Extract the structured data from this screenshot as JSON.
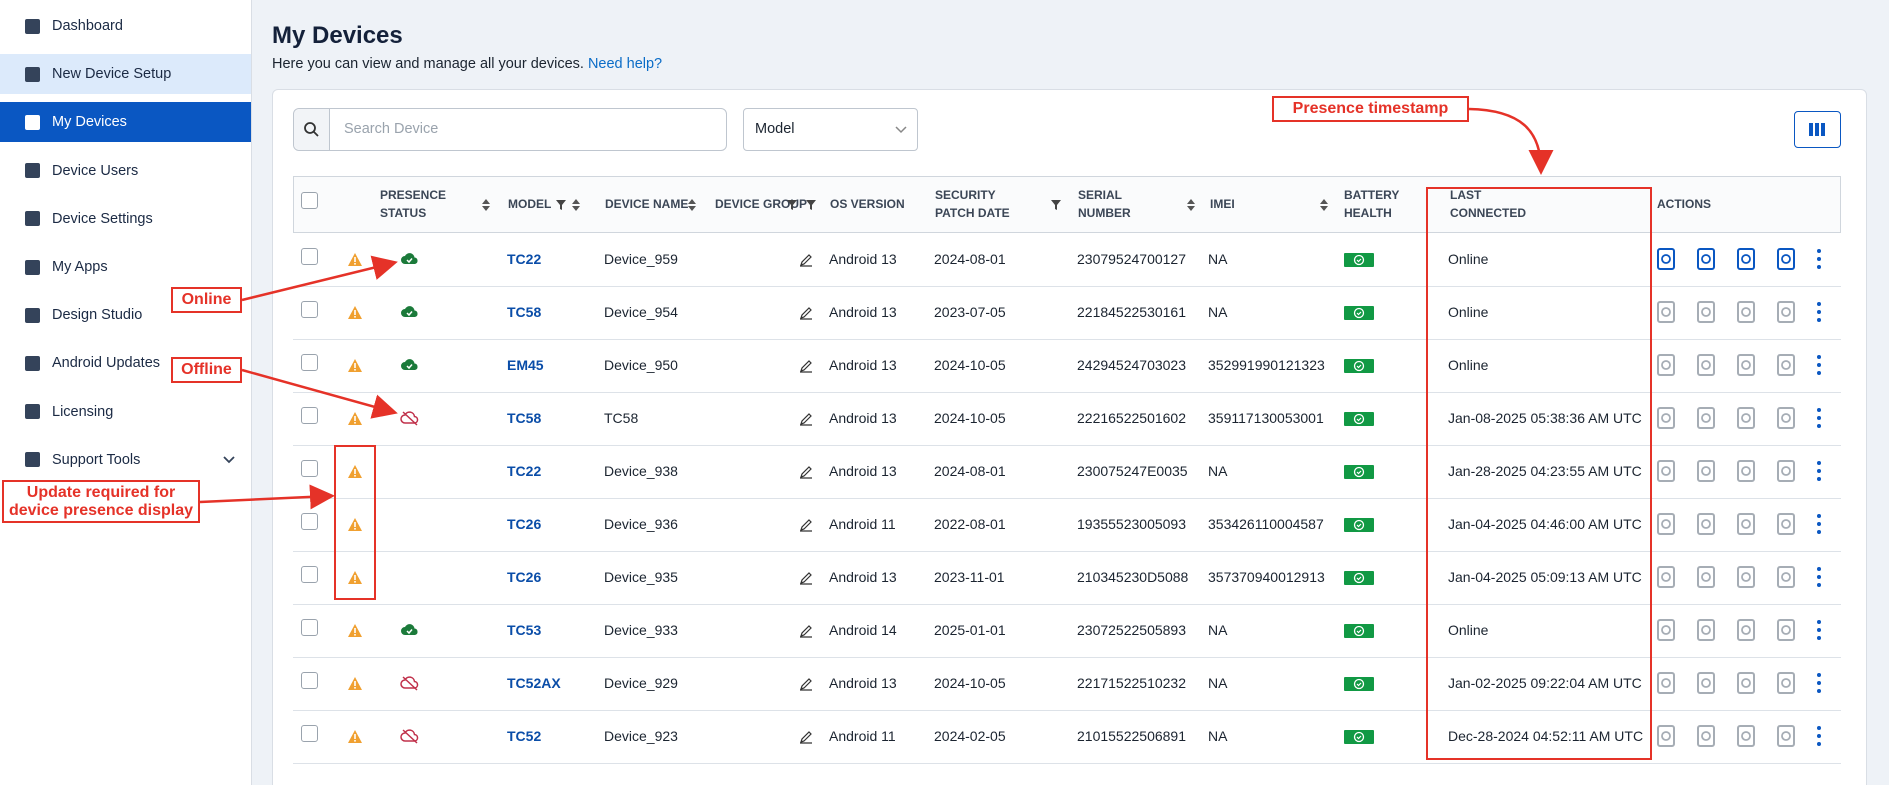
{
  "sidebar": {
    "items": [
      "Dashboard",
      "New Device Setup",
      "My Devices",
      "Device Users",
      "Device Settings",
      "My Apps",
      "Design Studio",
      "Android Updates",
      "Licensing",
      "Support Tools"
    ],
    "active": 2,
    "highlighted": 1
  },
  "header": {
    "title": "My Devices",
    "subtitle": "Here you can view and manage all your devices.",
    "help": "Need help?"
  },
  "toolbar": {
    "search_placeholder": "Search Device",
    "model_filter": "Model"
  },
  "table": {
    "columns": [
      "PRESENCE STATUS",
      "MODEL",
      "DEVICE NAME",
      "DEVICE GROUP",
      "OS VERSION",
      "SECURITY PATCH DATE",
      "SERIAL NUMBER",
      "IMEI",
      "BATTERY HEALTH",
      "LAST CONNECTED",
      "ACTIONS"
    ],
    "rows": [
      {
        "model": "TC22",
        "name": "Device_959",
        "os": "Android 13",
        "patch": "2024-08-01",
        "serial": "23079524700127",
        "imei": "NA",
        "last": "Online",
        "presence": "online"
      },
      {
        "model": "TC58",
        "name": "Device_954",
        "os": "Android 13",
        "patch": "2023-07-05",
        "serial": "22184522530161",
        "imei": "NA",
        "last": "Online",
        "presence": "online"
      },
      {
        "model": "EM45",
        "name": "Device_950",
        "os": "Android 13",
        "patch": "2024-10-05",
        "serial": "24294524703023",
        "imei": "352991990121323",
        "last": "Online",
        "presence": "online"
      },
      {
        "model": "TC58",
        "name": "TC58",
        "os": "Android 13",
        "patch": "2024-10-05",
        "serial": "22216522501602",
        "imei": "359117130053001",
        "last": "Jan-08-2025 05:38:36 AM UTC",
        "presence": "offline"
      },
      {
        "model": "TC22",
        "name": "Device_938",
        "os": "Android 13",
        "patch": "2024-08-01",
        "serial": "230075247E0035",
        "imei": "NA",
        "last": "Jan-28-2025 04:23:55 AM UTC",
        "presence": null
      },
      {
        "model": "TC26",
        "name": "Device_936",
        "os": "Android 11",
        "patch": "2022-08-01",
        "serial": "19355523005093",
        "imei": "353426110004587",
        "last": "Jan-04-2025 04:46:00 AM UTC",
        "presence": null
      },
      {
        "model": "TC26",
        "name": "Device_935",
        "os": "Android 13",
        "patch": "2023-11-01",
        "serial": "210345230D5088",
        "imei": "357370940012913",
        "last": "Jan-04-2025 05:09:13 AM UTC",
        "presence": null
      },
      {
        "model": "TC53",
        "name": "Device_933",
        "os": "Android 14",
        "patch": "2025-01-01",
        "serial": "23072522505893",
        "imei": "NA",
        "last": "Online",
        "presence": "online"
      },
      {
        "model": "TC52AX",
        "name": "Device_929",
        "os": "Android 13",
        "patch": "2024-10-05",
        "serial": "22171522510232",
        "imei": "NA",
        "last": "Jan-02-2025 09:22:04 AM UTC",
        "presence": "offline"
      },
      {
        "model": "TC52",
        "name": "Device_923",
        "os": "Android 11",
        "patch": "2024-02-05",
        "serial": "21015522506891",
        "imei": "NA",
        "last": "Dec-28-2024 04:52:11 AM UTC",
        "presence": "offline"
      }
    ]
  },
  "annotations": {
    "timestamp": "Presence timestamp",
    "online": "Online",
    "offline": "Offline",
    "update": "Update required for device presence display"
  }
}
